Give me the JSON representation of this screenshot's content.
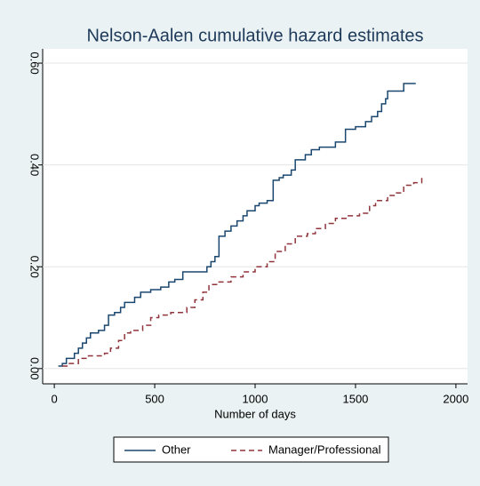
{
  "chart_data": {
    "type": "line",
    "step": true,
    "title": "Nelson-Aalen cumulative hazard estimates",
    "x_label": "Number of days",
    "xlim": [
      -58,
      2058
    ],
    "xticks": [
      0,
      500,
      1000,
      1500,
      2000
    ],
    "ylim": [
      -0.03,
      0.628
    ],
    "yticks": [
      {
        "value": 0,
        "label": "0.00"
      },
      {
        "value": 0.2,
        "label": "0.20"
      },
      {
        "value": 0.4,
        "label": "0.40"
      },
      {
        "value": 0.6,
        "label": "0.60"
      }
    ],
    "grid": true,
    "legend": "bottom",
    "series": [
      {
        "name": "Other",
        "color": "#1a476f",
        "line_style": "solid",
        "x": [
          20,
          40,
          60,
          100,
          120,
          140,
          160,
          180,
          220,
          250,
          270,
          300,
          330,
          350,
          400,
          430,
          480,
          530,
          570,
          600,
          640,
          720,
          760,
          780,
          800,
          820,
          850,
          880,
          910,
          940,
          960,
          1000,
          1020,
          1060,
          1090,
          1120,
          1140,
          1180,
          1200,
          1250,
          1280,
          1320,
          1400,
          1450,
          1500,
          1550,
          1580,
          1610,
          1630,
          1650,
          1660,
          1740,
          1800
        ],
        "values": [
          0.005,
          0.01,
          0.02,
          0.03,
          0.04,
          0.05,
          0.06,
          0.07,
          0.075,
          0.085,
          0.105,
          0.11,
          0.12,
          0.13,
          0.14,
          0.15,
          0.155,
          0.16,
          0.17,
          0.175,
          0.19,
          0.19,
          0.2,
          0.21,
          0.22,
          0.26,
          0.27,
          0.28,
          0.29,
          0.3,
          0.31,
          0.32,
          0.325,
          0.33,
          0.37,
          0.375,
          0.38,
          0.39,
          0.41,
          0.42,
          0.43,
          0.435,
          0.445,
          0.47,
          0.475,
          0.485,
          0.495,
          0.505,
          0.52,
          0.53,
          0.545,
          0.56,
          0.56
        ]
      },
      {
        "name": "Manager/Professional",
        "color": "#90353b",
        "line_style": "dash",
        "x": [
          40,
          70,
          120,
          170,
          250,
          280,
          320,
          350,
          380,
          440,
          480,
          520,
          580,
          660,
          700,
          740,
          770,
          820,
          880,
          940,
          1000,
          1060,
          1100,
          1150,
          1200,
          1260,
          1300,
          1350,
          1400,
          1460,
          1520,
          1570,
          1600,
          1660,
          1700,
          1740,
          1790,
          1830
        ],
        "values": [
          0.005,
          0.01,
          0.02,
          0.025,
          0.03,
          0.04,
          0.055,
          0.07,
          0.075,
          0.085,
          0.1,
          0.105,
          0.11,
          0.12,
          0.135,
          0.15,
          0.165,
          0.17,
          0.18,
          0.19,
          0.2,
          0.21,
          0.23,
          0.245,
          0.26,
          0.265,
          0.275,
          0.285,
          0.295,
          0.3,
          0.305,
          0.32,
          0.33,
          0.34,
          0.345,
          0.36,
          0.365,
          0.375
        ]
      }
    ]
  }
}
